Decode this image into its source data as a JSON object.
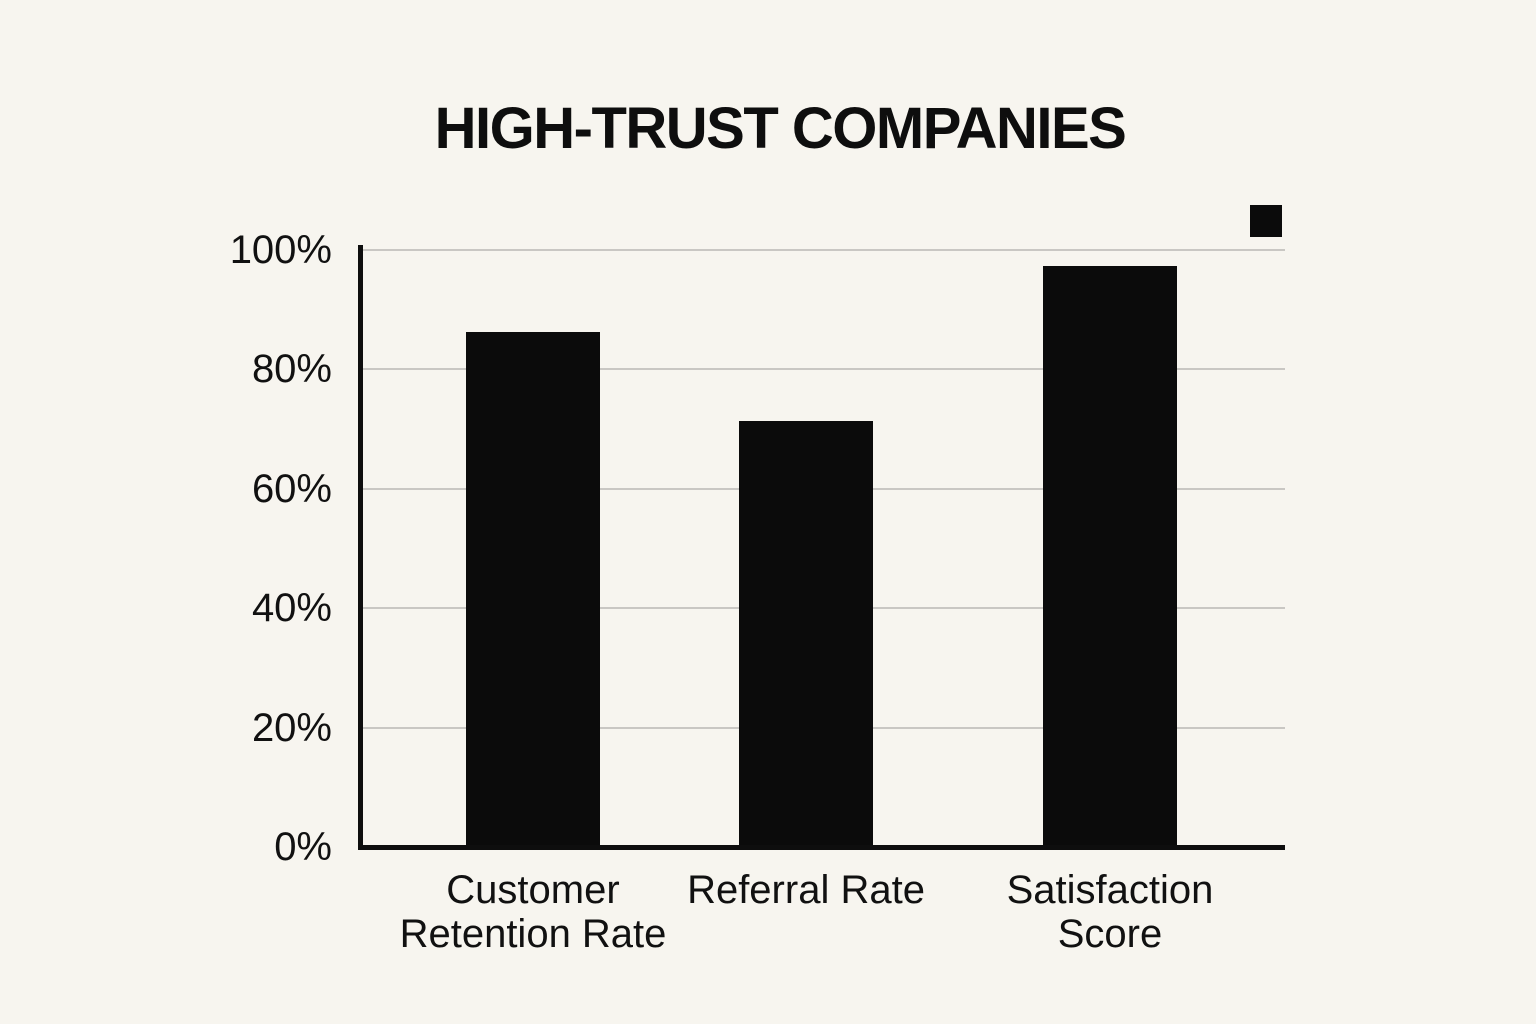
{
  "title": "HIGH-TRUST COMPANIES",
  "chart_data": {
    "type": "bar",
    "title": "HIGH-TRUST COMPANIES",
    "categories": [
      "Customer Retention Rate",
      "Referral Rate",
      "Satisfaction Score"
    ],
    "values": [
      86,
      71,
      97
    ],
    "yticks": [
      0,
      20,
      40,
      60,
      80,
      100
    ],
    "ytick_labels": [
      "0%",
      "20%",
      "40%",
      "60%",
      "80%",
      "100%"
    ],
    "ylim": [
      0,
      100
    ],
    "grid": true,
    "legend_position": "top-right",
    "legend": {
      "marker": "black-square",
      "label": ""
    },
    "colors": {
      "background": "#f7f5ef",
      "bar": "#0b0b0b",
      "gridline": "#c9c7c3",
      "axis": "#0e0e0e",
      "text": "#111111"
    }
  }
}
